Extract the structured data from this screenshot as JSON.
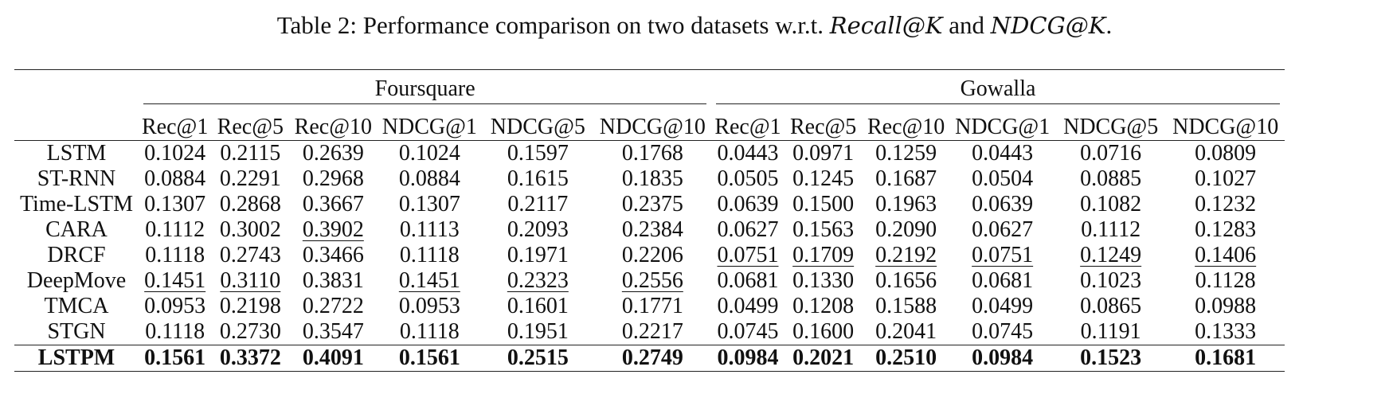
{
  "caption": {
    "prefix": "Table 2: Performance comparison on two datasets w.r.t. ",
    "metric_a": "Recall@K",
    "conj": " and ",
    "metric_b": "NDCG@K",
    "suffix": "."
  },
  "table": {
    "groups": [
      "Foursquare",
      "Gowalla"
    ],
    "metrics": [
      "Rec@1",
      "Rec@5",
      "Rec@10",
      "NDCG@1",
      "NDCG@5",
      "NDCG@10",
      "Rec@1",
      "Rec@5",
      "Rec@10",
      "NDCG@1",
      "NDCG@5",
      "NDCG@10"
    ],
    "rows": [
      {
        "model": "LSTM",
        "values": [
          "0.1024",
          "0.2115",
          "0.2639",
          "0.1024",
          "0.1597",
          "0.1768",
          "0.0443",
          "0.0971",
          "0.1259",
          "0.0443",
          "0.0716",
          "0.0809"
        ],
        "underline": []
      },
      {
        "model": "ST-RNN",
        "values": [
          "0.0884",
          "0.2291",
          "0.2968",
          "0.0884",
          "0.1615",
          "0.1835",
          "0.0505",
          "0.1245",
          "0.1687",
          "0.0504",
          "0.0885",
          "0.1027"
        ],
        "underline": []
      },
      {
        "model": "Time-LSTM",
        "values": [
          "0.1307",
          "0.2868",
          "0.3667",
          "0.1307",
          "0.2117",
          "0.2375",
          "0.0639",
          "0.1500",
          "0.1963",
          "0.0639",
          "0.1082",
          "0.1232"
        ],
        "underline": []
      },
      {
        "model": "CARA",
        "values": [
          "0.1112",
          "0.3002",
          "0.3902",
          "0.1113",
          "0.2093",
          "0.2384",
          "0.0627",
          "0.1563",
          "0.2090",
          "0.0627",
          "0.1112",
          "0.1283"
        ],
        "underline": [
          2
        ]
      },
      {
        "model": "DRCF",
        "values": [
          "0.1118",
          "0.2743",
          "0.3466",
          "0.1118",
          "0.1971",
          "0.2206",
          "0.0751",
          "0.1709",
          "0.2192",
          "0.0751",
          "0.1249",
          "0.1406"
        ],
        "underline": [
          6,
          7,
          8,
          9,
          10,
          11
        ]
      },
      {
        "model": "DeepMove",
        "values": [
          "0.1451",
          "0.3110",
          "0.3831",
          "0.1451",
          "0.2323",
          "0.2556",
          "0.0681",
          "0.1330",
          "0.1656",
          "0.0681",
          "0.1023",
          "0.1128"
        ],
        "underline": [
          0,
          1,
          3,
          4,
          5
        ]
      },
      {
        "model": "TMCA",
        "values": [
          "0.0953",
          "0.2198",
          "0.2722",
          "0.0953",
          "0.1601",
          "0.1771",
          "0.0499",
          "0.1208",
          "0.1588",
          "0.0499",
          "0.0865",
          "0.0988"
        ],
        "underline": []
      },
      {
        "model": "STGN",
        "values": [
          "0.1118",
          "0.2730",
          "0.3547",
          "0.1118",
          "0.1951",
          "0.2217",
          "0.0745",
          "0.1600",
          "0.2041",
          "0.0745",
          "0.1191",
          "0.1333"
        ],
        "underline": []
      }
    ],
    "best": {
      "model": "LSTPM",
      "values": [
        "0.1561",
        "0.3372",
        "0.4091",
        "0.1561",
        "0.2515",
        "0.2749",
        "0.0984",
        "0.2021",
        "0.2510",
        "0.0984",
        "0.1523",
        "0.1681"
      ]
    }
  }
}
